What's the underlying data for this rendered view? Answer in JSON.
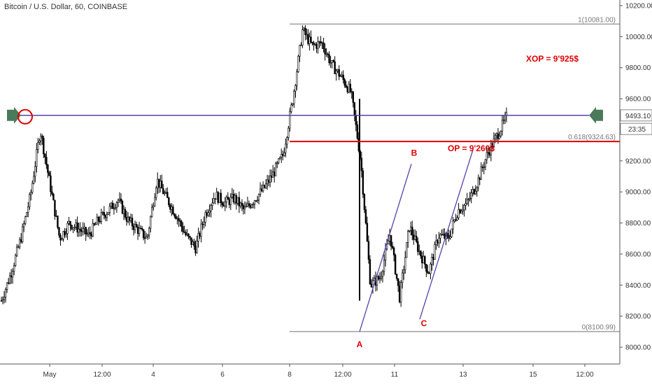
{
  "chart_data": {
    "type": "candlestick",
    "title": "Bitcoin / U.S. Dollar, 60, COINBASE",
    "ylim": [
      7900,
      10250
    ],
    "y_ticks": [
      "10200.00",
      "10000.00",
      "9800.00",
      "9600.00",
      "9400.00",
      "9200.00",
      "9000.00",
      "8800.00",
      "8600.00",
      "8400.00",
      "8200.00",
      "8000.00"
    ],
    "y_tick_values": [
      10200,
      10000,
      9800,
      9600,
      9400,
      9200,
      9000,
      8800,
      8600,
      8400,
      8200,
      8000
    ],
    "x_ticks": [
      "May",
      "12:00",
      "4",
      "6",
      "8",
      "12:00",
      "11",
      "13",
      "15",
      "12:00"
    ],
    "price_line": {
      "value": 9493.1,
      "label": "9493.10",
      "countdown": "23:35"
    },
    "fib_levels": [
      {
        "ratio": "1",
        "label": "1(10081.00)",
        "value": 10081
      },
      {
        "ratio": "0.618",
        "label": "0.618(9324.63)",
        "value": 9324.63
      },
      {
        "ratio": "0",
        "label": "0(8100.99)",
        "value": 8100.99
      }
    ],
    "pattern_points": [
      {
        "label": "A",
        "value": 8100
      },
      {
        "label": "B",
        "value": 9180
      },
      {
        "label": "C",
        "value": 8180
      }
    ],
    "annotations": {
      "xop": "XOP = 9'925$",
      "op": "OP = 9'260$"
    },
    "series": [
      {
        "values": [
          8300,
          8480,
          8700,
          8980,
          9400,
          9050,
          8700,
          8800,
          8760,
          8720,
          8820,
          8880,
          8950,
          8820,
          8760,
          8700,
          9080,
          8960,
          8850,
          8720,
          8640,
          8860,
          8980,
          8930,
          8960,
          8880,
          8950,
          9020,
          9120,
          9240,
          9600,
          10040,
          9940,
          9960,
          9820,
          9740,
          9640,
          9200,
          8400,
          8450,
          8730,
          8320,
          8780,
          8620,
          8480,
          8720,
          8700,
          8880,
          8930,
          9060,
          9240,
          9360,
          9480
        ]
      }
    ]
  }
}
